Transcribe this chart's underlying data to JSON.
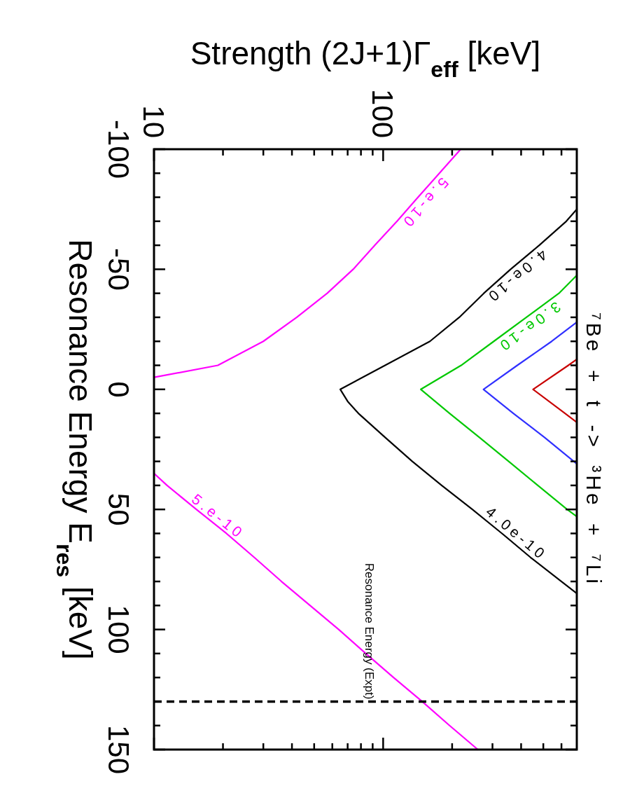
{
  "chart_data": {
    "type": "line",
    "title": "⁷Be + t -> ³He + ⁷Li",
    "xlabel": "Strength (2J+1)Γ$_{eff}$ [keV]",
    "ylabel": "Resonance Energy E$_{res}$ [keV]",
    "xlim": [
      10,
      700
    ],
    "ylim": [
      150,
      -100
    ],
    "log": "x",
    "xticks": [
      10,
      {
        "value": 20,
        "label": null
      },
      {
        "value": 30,
        "label": null
      },
      {
        "value": 40,
        "label": null
      },
      {
        "value": 50,
        "label": null
      },
      {
        "value": 60,
        "label": null
      },
      {
        "value": 70,
        "label": null
      },
      {
        "value": 80,
        "label": null
      },
      {
        "value": 90,
        "label": null
      },
      100,
      {
        "value": 200,
        "label": null
      },
      {
        "value": 300,
        "label": null
      },
      {
        "value": 400,
        "label": null
      },
      {
        "value": 500,
        "label": null
      },
      {
        "value": 600,
        "label": null
      }
    ],
    "yticks": [
      -100,
      {
        "value": -90,
        "label": null
      },
      {
        "value": -80,
        "label": null
      },
      {
        "value": -70,
        "label": null
      },
      {
        "value": -60,
        "label": null
      },
      -50,
      {
        "value": -40,
        "label": null
      },
      {
        "value": -30,
        "label": null
      },
      {
        "value": -20,
        "label": null
      },
      {
        "value": -10,
        "label": null
      },
      0,
      {
        "value": 10,
        "label": null
      },
      {
        "value": 20,
        "label": null
      },
      {
        "value": 30,
        "label": null
      },
      {
        "value": 40,
        "label": null
      },
      50,
      {
        "value": 60,
        "label": null
      },
      {
        "value": 70,
        "label": null
      },
      {
        "value": 80,
        "label": null
      },
      {
        "value": 90,
        "label": null
      },
      100,
      {
        "value": 110,
        "label": null
      },
      {
        "value": 120,
        "label": null
      },
      {
        "value": 130,
        "label": null
      },
      {
        "value": 140,
        "label": null
      },
      150
    ],
    "series": [
      {
        "color": "#ff00ff",
        "x": [
          218,
          176,
          142,
          115,
          92,
          74,
          57,
          42,
          30,
          19,
          10
        ],
        "values": [
          -100,
          -90,
          -80,
          -70,
          -60,
          -50,
          -40,
          -30,
          -20,
          -10,
          -5
        ]
      },
      {
        "color": "#ff00ff",
        "x": [
          10,
          11.4,
          15.3,
          20.7,
          27.4,
          36,
          48,
          64,
          84,
          111,
          148,
          195,
          259
        ],
        "values": [
          35,
          40,
          50,
          60,
          70,
          80,
          90,
          100,
          110,
          120,
          130,
          140,
          150
        ]
      },
      {
        "color": "#000000",
        "x": [
          700,
          630,
          480,
          360,
          275,
          215,
          160,
          102,
          65,
          70,
          78,
          102,
          134,
          180,
          245,
          330,
          440,
          600,
          700
        ],
        "values": [
          -75,
          -70,
          -60,
          -50,
          -40,
          -30,
          -20,
          -10,
          0,
          5,
          10,
          20,
          30,
          40,
          50,
          60,
          70,
          80,
          85
        ]
      },
      {
        "color": "#00c800",
        "x": [
          700,
          585,
          422,
          304,
          219,
          146,
          195,
          263,
          353,
          473,
          635,
          700
        ],
        "values": [
          -47.5,
          -40,
          -30,
          -20,
          -10,
          0,
          10,
          20,
          30,
          40,
          50,
          53
        ]
      },
      {
        "color": "#3030ff",
        "x": [
          700,
          544,
          385,
          274,
          370,
          506,
          700
        ],
        "values": [
          -28,
          -20,
          -10,
          0,
          10,
          20,
          31
        ]
      },
      {
        "color": "#c80000",
        "x": [
          700,
          643,
          451,
          622,
          700
        ],
        "values": [
          -12.5,
          -10,
          0,
          10,
          13.7
        ]
      }
    ],
    "ref_lines": [
      {
        "axis": "y",
        "value": 130,
        "label": "Resonance Energy (Expt)",
        "color": "#000000",
        "line_style": "dashed"
      }
    ],
    "annotations": [
      {
        "text": "5.e-10",
        "x": 142,
        "y": -80
      },
      {
        "text": "4.0e-10",
        "x": 360,
        "y": -50
      },
      {
        "text": "3.0e-10",
        "x": 410,
        "y": -29
      },
      {
        "text": "5.e-10",
        "x": 18,
        "y": 56
      },
      {
        "text": "4.0e-10",
        "x": 360,
        "y": 63
      }
    ]
  }
}
